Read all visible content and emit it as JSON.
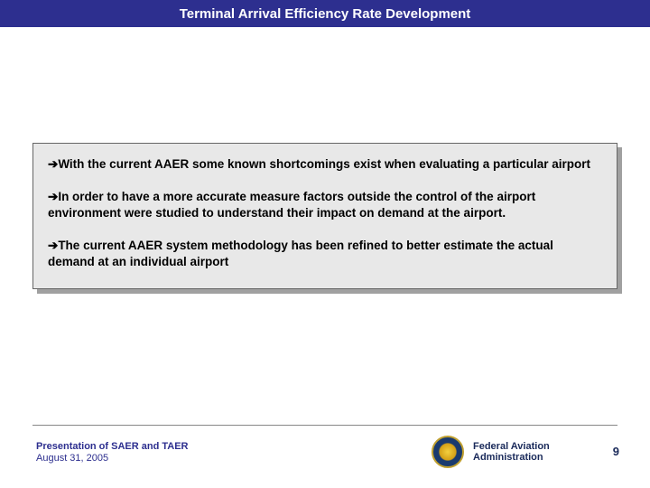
{
  "colors": {
    "title_bar_bg": "#2d2f8f",
    "title_text": "#ffffff",
    "content_bg": "#e8e8e8",
    "content_shadow": "#a0a0a0",
    "content_border": "#666666",
    "body_text": "#000000",
    "footer_text": "#2d2f8f",
    "faa_text": "#1a2a5a",
    "divider": "#888888"
  },
  "typography": {
    "title_fontsize": 15,
    "body_fontsize": 13.5,
    "footer_fontsize": 11,
    "pagenum_fontsize": 13,
    "font_family": "Arial"
  },
  "title": "Terminal  Arrival Efficiency Rate Development",
  "bullets": [
    {
      "arrow": "➔",
      "text": "With the current AAER some known shortcomings exist when evaluating a particular airport"
    },
    {
      "arrow": "➔",
      "text": "In order to have a more accurate measure factors outside the control of the airport environment were studied to understand their impact on demand at the airport."
    },
    {
      "arrow": "➔",
      "text": "The current AAER system methodology has been refined to better estimate the actual demand at an individual airport"
    }
  ],
  "footer": {
    "presentation_title": "Presentation of SAER and TAER",
    "date": "August 31, 2005",
    "org_line1": "Federal Aviation",
    "org_line2": "Administration",
    "page_number": "9"
  }
}
